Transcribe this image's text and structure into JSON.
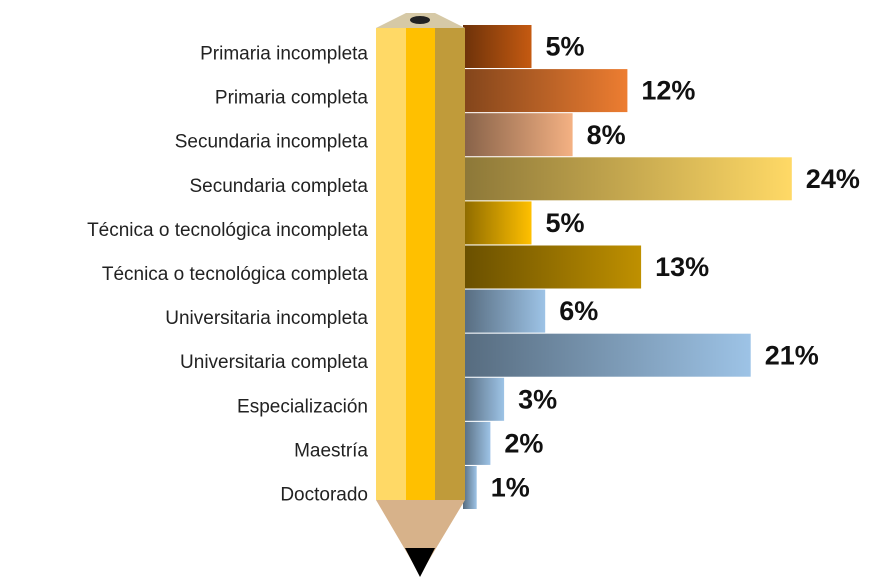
{
  "chart_data": {
    "type": "bar",
    "categories": [
      "Primaria incompleta",
      "Primaria completa",
      "Secundaria incompleta",
      "Secundaria completa",
      "Técnica o tecnológica incompleta",
      "Técnica o tecnológica completa",
      "Universitaria incompleta",
      "Universitaria completa",
      "Especialización",
      "Maestría",
      "Doctorado"
    ],
    "values": [
      5,
      12,
      8,
      24,
      5,
      13,
      6,
      21,
      3,
      2,
      1
    ],
    "value_labels": [
      "5%",
      "12%",
      "8%",
      "24%",
      "5%",
      "13%",
      "6%",
      "21%",
      "3%",
      "2%",
      "1%"
    ],
    "colors": [
      "#c55a11",
      "#ed7d31",
      "#f4b183",
      "#ffd966",
      "#ffc000",
      "#bf9000",
      "#9dc3e6",
      "#9dc3e6",
      "#9dc3e6",
      "#9dc3e6",
      "#9dc3e6"
    ]
  }
}
